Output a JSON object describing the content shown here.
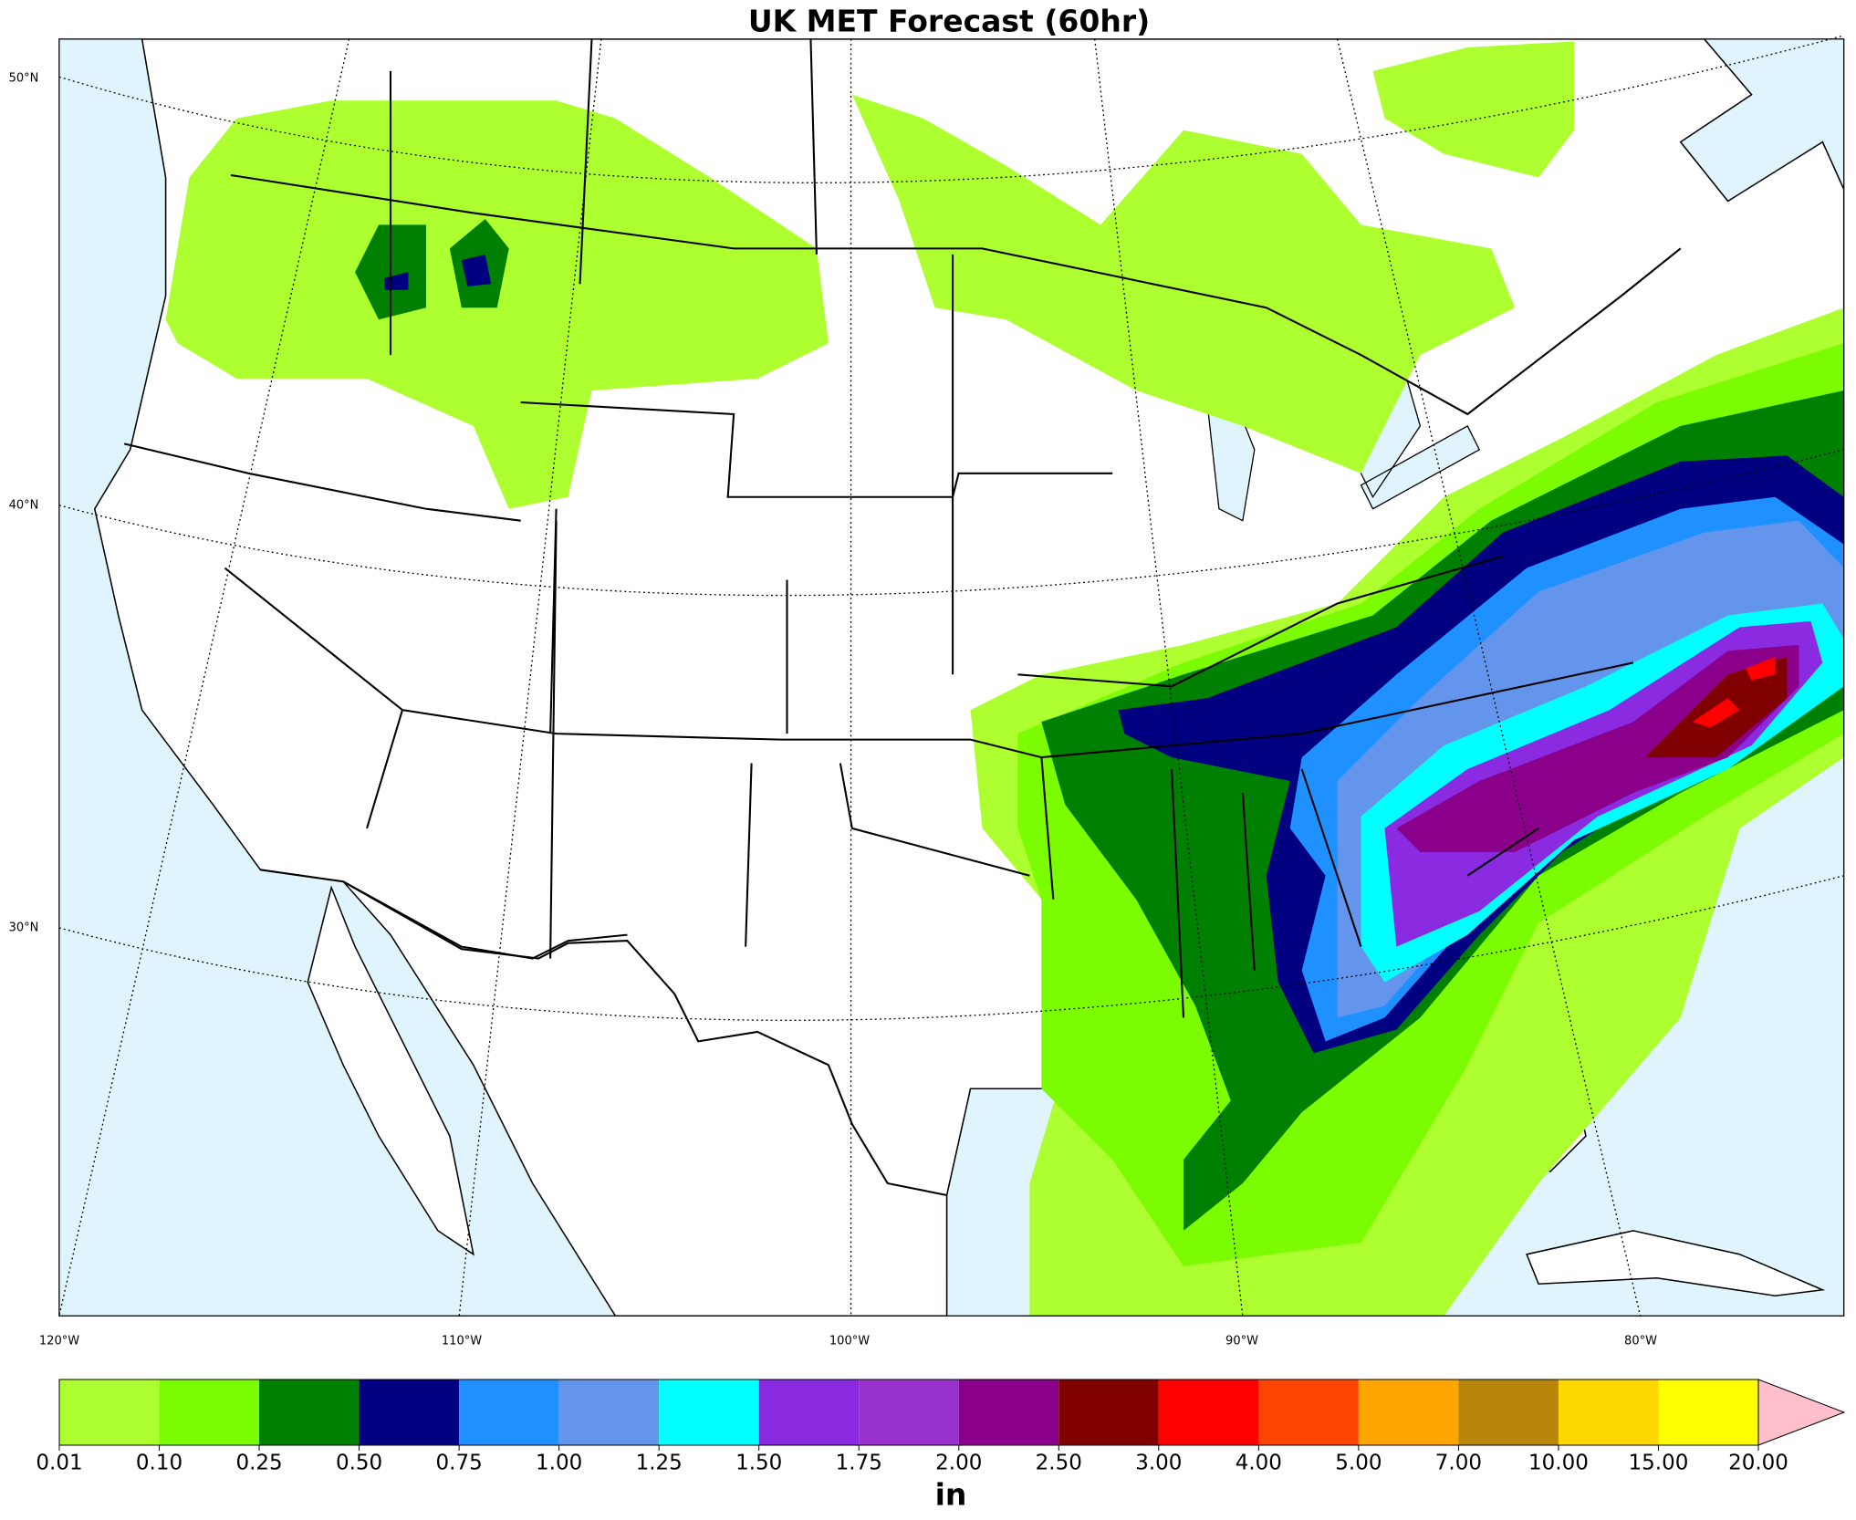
{
  "title": "UK MET Forecast (60hr)",
  "map": {
    "lat_labels": [
      "50°N",
      "40°N",
      "30°N"
    ],
    "lon_labels": [
      "120°W",
      "110°W",
      "100°W",
      "90°W",
      "80°W"
    ]
  },
  "colorbar": {
    "levels": [
      {
        "value": 0.01,
        "label": "0.01"
      },
      {
        "value": 0.1,
        "label": "0.10"
      },
      {
        "value": 0.25,
        "label": "0.25"
      },
      {
        "value": 0.5,
        "label": "0.50"
      },
      {
        "value": 0.75,
        "label": "0.75"
      },
      {
        "value": 1,
        "label": "1.00"
      },
      {
        "value": 1.25,
        "label": "1.25"
      },
      {
        "value": 1.5,
        "label": "1.50"
      },
      {
        "value": 1.75,
        "label": "1.75"
      },
      {
        "value": 2,
        "label": "2.00"
      },
      {
        "value": 2.5,
        "label": "2.50"
      },
      {
        "value": 3,
        "label": "3.00"
      },
      {
        "value": 4,
        "label": "4.00"
      },
      {
        "value": 5,
        "label": "5.00"
      },
      {
        "value": 7,
        "label": "7.00"
      },
      {
        "value": 10,
        "label": "10.00"
      },
      {
        "value": 15,
        "label": "15.00"
      },
      {
        "value": 20,
        "label": "20.00"
      }
    ],
    "colors": [
      "#adff2f",
      "#7cfc00",
      "#008000",
      "#000080",
      "#1e90ff",
      "#6495ed",
      "#00ffff",
      "#8a2be2",
      "#9932cc",
      "#8b008b",
      "#800000",
      "#ff0000",
      "#ff4500",
      "#ffa500",
      "#b8860b",
      "#ffd700",
      "#ffff00"
    ],
    "extend_color": "#ffc0cb",
    "label": "in"
  }
}
